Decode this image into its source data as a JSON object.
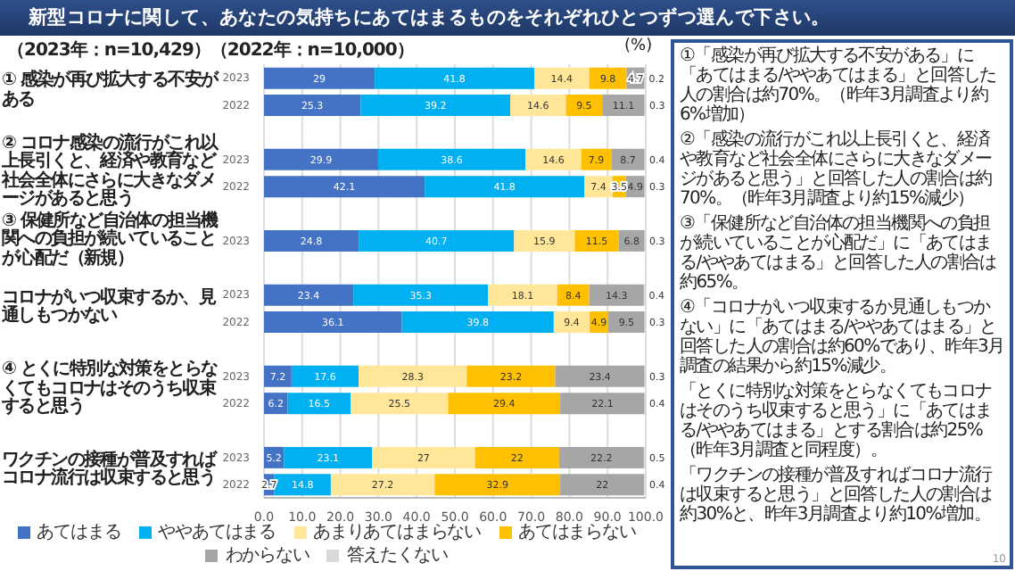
{
  "chart_data": {
    "type": "bar",
    "orientation": "horizontal",
    "stacked": true,
    "data_labels": true,
    "grid": "x",
    "legend": "bottom",
    "title": "新型コロナに関して、あなたの気持ちにあてはまるものをそれぞれひとつずつ選んで下さい。",
    "categories": [
      "2023",
      "2022",
      null,
      "2023",
      "2022",
      null,
      "2023",
      null,
      "2023",
      "2022",
      null,
      "2023",
      "2022",
      null,
      "2023",
      "2022"
    ],
    "xlim": [
      0,
      100
    ],
    "xticks": [
      {
        "value": 0,
        "label": "0.0"
      },
      {
        "value": 10,
        "label": "10.0"
      },
      {
        "value": 20,
        "label": "20.0"
      },
      {
        "value": 30,
        "label": "30.0"
      },
      {
        "value": 40,
        "label": "40.0"
      },
      {
        "value": 50,
        "label": "50.0"
      },
      {
        "value": 60,
        "label": "60.0"
      },
      {
        "value": 70,
        "label": "70.0"
      },
      {
        "value": 80,
        "label": "80.0"
      },
      {
        "value": 90,
        "label": "90.0"
      },
      {
        "value": 100,
        "label": "100.0"
      }
    ],
    "series": [
      {
        "name": "あてはまる",
        "color": "#4472c4",
        "values": [
          29.0,
          25.3,
          null,
          29.9,
          42.1,
          null,
          24.8,
          null,
          23.4,
          36.1,
          null,
          7.2,
          6.2,
          null,
          5.2,
          2.7
        ]
      },
      {
        "name": "ややあてはまる",
        "color": "#00b0f0",
        "values": [
          41.8,
          39.2,
          null,
          38.6,
          41.8,
          null,
          40.7,
          null,
          35.3,
          39.8,
          null,
          17.6,
          16.5,
          null,
          23.1,
          14.8
        ]
      },
      {
        "name": "あまりあてはまらない",
        "color": "#ffe699",
        "values": [
          14.4,
          14.6,
          null,
          14.6,
          7.4,
          null,
          15.9,
          null,
          18.1,
          9.4,
          null,
          28.3,
          25.5,
          null,
          27.0,
          27.2
        ]
      },
      {
        "name": "あてはまらない",
        "color": "#ffc000",
        "values": [
          9.8,
          9.5,
          null,
          7.9,
          3.5,
          null,
          11.5,
          null,
          8.4,
          4.9,
          null,
          23.2,
          29.4,
          null,
          22.0,
          32.9
        ]
      },
      {
        "name": "わからない",
        "color": "#a6a6a6",
        "values": [
          4.7,
          11.1,
          null,
          8.7,
          4.9,
          null,
          6.8,
          null,
          14.3,
          9.5,
          null,
          23.4,
          22.1,
          null,
          22.2,
          22.0
        ]
      },
      {
        "name": "答えたくない",
        "color": "#d9d9d9",
        "values": [
          0.2,
          0.3,
          null,
          0.4,
          0.3,
          null,
          0.3,
          null,
          0.4,
          0.3,
          null,
          0.3,
          0.4,
          null,
          0.5,
          0.4
        ]
      }
    ],
    "annotations": [
      "（2023年：n=10,429）（2022年：n=10,000）",
      "(%)",
      "① 感染が再び拡大する不安がある",
      "② コロナ感染の流行がこれ以上長引くと、経済や教育など社会全体にさらに大きなダメージがあると思う",
      "③ 保健所など自治体の担当機関への負担が続いていることが心配だ（新規）",
      "コロナがいつ収束するか、見通しもつかない",
      "④ とくに特別な対策をとらなくてもコロナはそのうち収束すると思う",
      "ワクチンの接種が普及すればコロナ流行は収束すると思う",
      "①「感染が再び拡大する不安がある」に「あてはまる/ややあてはまる」と回答した人の割合は約70%。（昨年3月調査より約6%増加）",
      "②「感染の流行がこれ以上長引くと、経済や教育など社会全体にさらに大きなダメージがあると思う」と回答した人の割合は約70%。（昨年3月調査より約15%減少）",
      "③「保健所など自治体の担当機関への負担が続いていることが心配だ」に「あてはまる/ややあてはまる」と回答した人の割合は約65%。",
      "④「コロナがいつ収束するか見通しもつかない」に「あてはまる/ややあてはまる」と回答した人の割合は約60%であり、昨年3月調査の結果から約15%減少。",
      "「とくに特別な対策をとらなくてもコロナはそのうち収束すると思う」に「あてはまる/ややあてはまる」とする割合は約25%（昨年3月調査と同程度）。",
      "「ワクチンの接種が普及すればコロナ流行は収束すると思う」と回答した人の割合は約30%と、昨年3月調査より約10%増加。",
      "10"
    ]
  }
}
